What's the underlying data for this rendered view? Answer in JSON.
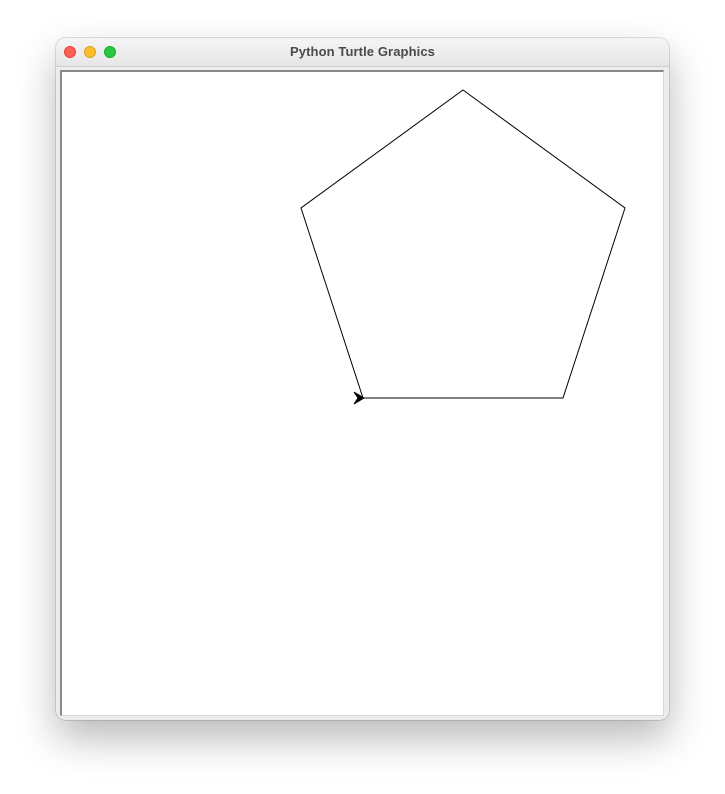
{
  "window": {
    "title": "Python Turtle Graphics",
    "buttons": [
      {
        "name": "close",
        "color": "#ff5f57",
        "border": "#e0443e"
      },
      {
        "name": "minimize",
        "color": "#febc2e",
        "border": "#dea123"
      },
      {
        "name": "maximize",
        "color": "#28c840",
        "border": "#1aab29"
      }
    ]
  },
  "canvas": {
    "background": "#ffffff",
    "stroke_color": "#000000",
    "shape": "pentagon",
    "turtle_icon": "arrow-turtle-icon"
  }
}
